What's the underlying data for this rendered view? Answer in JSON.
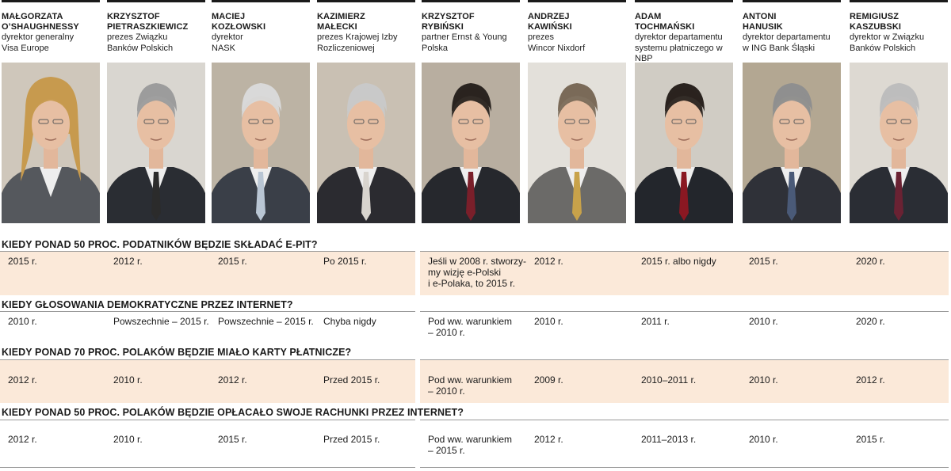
{
  "people": [
    {
      "name": "MAŁGORZATA\nO’SHAUGHNESSY",
      "role": "dyrektor generalny\nVisa Europe"
    },
    {
      "name": "KRZYSZTOF\nPIETRASZKIEWICZ",
      "role": "prezes Związku\nBanków Polskich"
    },
    {
      "name": "MACIEJ\nKOZŁOWSKI",
      "role": "dyrektor\nNASK"
    },
    {
      "name": "KAZIMIERZ\nMAŁECKI",
      "role": "prezes Krajowej Izby\nRozliczeniowej"
    },
    {
      "name": "KRZYSZTOF\nRYBIŃSKI",
      "role": "partner Ernst & Young\nPolska"
    },
    {
      "name": "ANDRZEJ\nKAWIŃSKI",
      "role": "prezes\nWincor Nixdorf"
    },
    {
      "name": "ADAM\nTOCHMAŃSKI",
      "role": "dyrektor departamentu\nsystemu płatniczego w NBP"
    },
    {
      "name": "ANTONI\nHANUSIK",
      "role": "dyrektor departamentu\nw ING Bank Śląski"
    },
    {
      "name": "REMIGIUSZ\nKASZUBSKI",
      "role": "dyrektor w Związku\nBanków Polskich"
    }
  ],
  "questions": [
    {
      "text": "KIEDY PONAD 50 PROC. PODATNIKÓW BĘDZIE SKŁADAĆ E-PIT?",
      "answers": [
        "2015 r.",
        "2012 r.",
        "2015 r.",
        "Po 2015 r.",
        "Jeśli w 2008 r. stworzy-\nmy wizję e-Polski\ni e-Polaka, to 2015 r.",
        "2012 r.",
        "2015 r. albo nigdy",
        "2015 r.",
        "2020 r."
      ]
    },
    {
      "text": "KIEDY GŁOSOWANIA DEMOKRATYCZNE PRZEZ INTERNET?",
      "answers": [
        "2010 r.",
        "Powszechnie – 2015 r.",
        "Powszechnie – 2015 r.",
        "Chyba nigdy",
        "Pod ww. warunkiem\n– 2010 r.",
        "2010 r.",
        "2011 r.",
        "2010 r.",
        "2020 r."
      ]
    },
    {
      "text": "KIEDY PONAD 70 PROC. POLAKÓW BĘDZIE MIAŁO KARTY PŁATNICZE?",
      "answers": [
        "2012 r.",
        "2010 r.",
        "2012 r.",
        "Przed 2015 r.",
        "Pod ww. warunkiem\n– 2010 r.",
        "2009 r.",
        "2010–2011 r.",
        "2010 r.",
        "2012 r."
      ]
    },
    {
      "text": "KIEDY PONAD 50 PROC. POLAKÓW BĘDZIE OPŁACAŁO SWOJE RACHUNKI PRZEZ INTERNET?",
      "answers": [
        "2012 r.",
        "2010 r.",
        "2015 r.",
        "Przed 2015 r.",
        "Pod ww. warunkiem\n– 2015 r.",
        "2012 r.",
        "2011–2013 r.",
        "2010 r.",
        "2015 r."
      ]
    }
  ],
  "colors": {
    "band": "#fbe9d9",
    "rule": "#1a1a1a",
    "separator": "#9a9a9a"
  }
}
